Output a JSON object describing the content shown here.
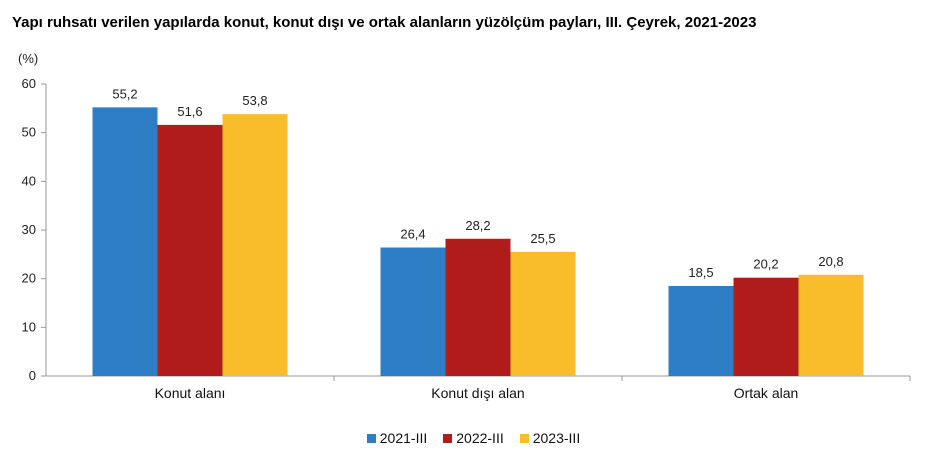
{
  "chart_data": {
    "type": "bar",
    "title": "Yapı ruhsatı verilen yapılarda konut, konut dışı ve ortak alanların yüzölçüm payları, III. Çeyrek, 2021-2023",
    "ylabel": "(%)",
    "xlabel": "",
    "ylim": [
      0,
      60
    ],
    "yticks": [
      0,
      10,
      20,
      30,
      40,
      50,
      60
    ],
    "categories": [
      "Konut alanı",
      "Konut dışı alan",
      "Ortak alan"
    ],
    "series": [
      {
        "name": "2021-III",
        "color": "#2E7EC6",
        "values": [
          55.2,
          26.4,
          18.5
        ],
        "labels": [
          "55,2",
          "26,4",
          "18,5"
        ]
      },
      {
        "name": "2022-III",
        "color": "#B01C1C",
        "values": [
          51.6,
          28.2,
          20.2
        ],
        "labels": [
          "51,6",
          "28,2",
          "20,2"
        ]
      },
      {
        "name": "2023-III",
        "color": "#F9BC2B",
        "values": [
          53.8,
          25.5,
          20.8
        ],
        "labels": [
          "53,8",
          "25,5",
          "20,8"
        ]
      }
    ],
    "grid": false,
    "legend_position": "bottom"
  }
}
